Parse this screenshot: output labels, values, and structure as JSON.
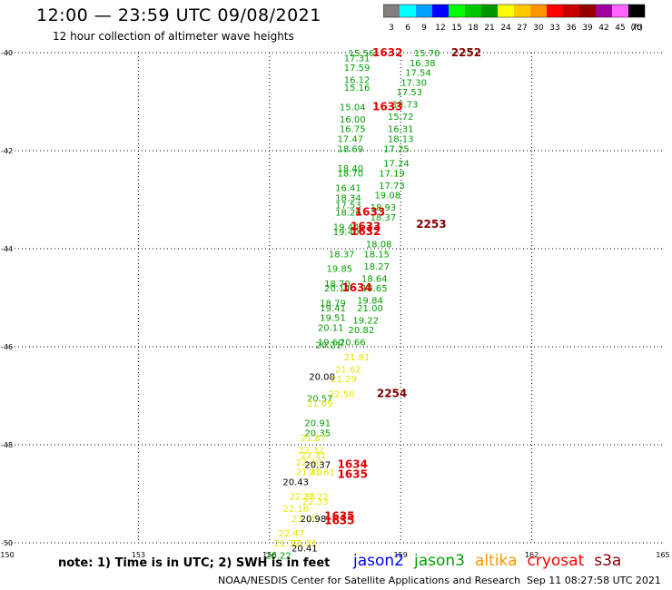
{
  "header": {
    "title": "12:00 — 23:59 UTC 09/08/2021",
    "subtitle": "12 hour collection of altimeter wave heights"
  },
  "legend": {
    "unit": "(ft)",
    "bins": [
      {
        "label": "3",
        "color": "#808080"
      },
      {
        "label": "6",
        "color": "#00ffff"
      },
      {
        "label": "9",
        "color": "#00a0ff"
      },
      {
        "label": "12",
        "color": "#0000ff"
      },
      {
        "label": "15",
        "color": "#00ff00"
      },
      {
        "label": "18",
        "color": "#00c800"
      },
      {
        "label": "21",
        "color": "#009600"
      },
      {
        "label": "24",
        "color": "#ffff00"
      },
      {
        "label": "27",
        "color": "#ffc800"
      },
      {
        "label": "30",
        "color": "#ff9600"
      },
      {
        "label": "33",
        "color": "#ff0000"
      },
      {
        "label": "36",
        "color": "#c80000"
      },
      {
        "label": "39",
        "color": "#960000"
      },
      {
        "label": "42",
        "color": "#a000a0"
      },
      {
        "label": "45",
        "color": "#ff64ff"
      },
      {
        "label": "70",
        "color": "#000000"
      }
    ]
  },
  "notes": "note:  1) Time is in UTC;  2) SWH is in feet",
  "satellites": [
    {
      "name": "jason2",
      "color": "#0000ff"
    },
    {
      "name": "jason3",
      "color": "#00a000"
    },
    {
      "name": "altika",
      "color": "#ff9600"
    },
    {
      "name": "cryosat",
      "color": "#ff0000"
    },
    {
      "name": "s3a",
      "color": "#800000"
    }
  ],
  "footer": {
    "credit": "NOAA/NESDIS Center for Satellite Applications and Research",
    "timestamp": "Sep 11 08:27:58 UTC 2021"
  },
  "chart_data": {
    "type": "scatter",
    "xlim": [
      150,
      165
    ],
    "ylim": [
      -50,
      -40
    ],
    "x_ticks": [
      "150",
      "153",
      "156",
      "159",
      "162",
      "165"
    ],
    "y_ticks": [
      "-40",
      "-42",
      "-44",
      "-46",
      "-48",
      "-50"
    ],
    "grid": true,
    "band_colors": {
      "green": "#00a000",
      "yellow": "#e8e800",
      "black": "#000000"
    },
    "swh_points": [
      {
        "x": 158.1,
        "y": -40.0,
        "v": "15.56",
        "c": "green"
      },
      {
        "x": 159.6,
        "y": -40.0,
        "v": "15.70",
        "c": "green"
      },
      {
        "x": 158.0,
        "y": -40.1,
        "v": "17.31",
        "c": "green"
      },
      {
        "x": 159.5,
        "y": -40.2,
        "v": "16.38",
        "c": "green"
      },
      {
        "x": 158.0,
        "y": -40.3,
        "v": "17.59",
        "c": "green"
      },
      {
        "x": 159.4,
        "y": -40.4,
        "v": "17.54",
        "c": "green"
      },
      {
        "x": 158.0,
        "y": -40.55,
        "v": "16.12",
        "c": "green"
      },
      {
        "x": 159.3,
        "y": -40.6,
        "v": "17.30",
        "c": "green"
      },
      {
        "x": 158.0,
        "y": -40.7,
        "v": "15.16",
        "c": "green"
      },
      {
        "x": 159.2,
        "y": -40.8,
        "v": "17.53",
        "c": "green"
      },
      {
        "x": 159.1,
        "y": -41.05,
        "v": "18.73",
        "c": "green"
      },
      {
        "x": 157.9,
        "y": -41.1,
        "v": "15.04",
        "c": "green"
      },
      {
        "x": 159.0,
        "y": -41.3,
        "v": "15.72",
        "c": "green"
      },
      {
        "x": 157.9,
        "y": -41.35,
        "v": "16.00",
        "c": "green"
      },
      {
        "x": 157.9,
        "y": -41.55,
        "v": "16.75",
        "c": "green"
      },
      {
        "x": 159.0,
        "y": -41.55,
        "v": "16.31",
        "c": "green"
      },
      {
        "x": 157.85,
        "y": -41.75,
        "v": "17.47",
        "c": "green"
      },
      {
        "x": 159.0,
        "y": -41.75,
        "v": "18.13",
        "c": "green"
      },
      {
        "x": 157.85,
        "y": -41.95,
        "v": "18.69",
        "c": "green"
      },
      {
        "x": 158.9,
        "y": -41.95,
        "v": "17.25",
        "c": "green"
      },
      {
        "x": 158.9,
        "y": -42.25,
        "v": "17.24",
        "c": "green"
      },
      {
        "x": 157.85,
        "y": -42.35,
        "v": "18.40",
        "c": "green"
      },
      {
        "x": 157.85,
        "y": -42.45,
        "v": "18.70",
        "c": "green"
      },
      {
        "x": 158.8,
        "y": -42.45,
        "v": "17.19",
        "c": "green"
      },
      {
        "x": 158.8,
        "y": -42.7,
        "v": "17.73",
        "c": "green"
      },
      {
        "x": 157.8,
        "y": -42.75,
        "v": "16.41",
        "c": "green"
      },
      {
        "x": 158.7,
        "y": -42.9,
        "v": "19.08",
        "c": "green"
      },
      {
        "x": 157.8,
        "y": -42.95,
        "v": "18.34",
        "c": "green"
      },
      {
        "x": 157.8,
        "y": -43.1,
        "v": "17.53",
        "c": "green"
      },
      {
        "x": 158.6,
        "y": -43.15,
        "v": "18.93",
        "c": "green"
      },
      {
        "x": 157.8,
        "y": -43.25,
        "v": "18.26",
        "c": "green"
      },
      {
        "x": 158.6,
        "y": -43.35,
        "v": "18.37",
        "c": "green"
      },
      {
        "x": 157.75,
        "y": -43.55,
        "v": "19.44",
        "c": "green"
      },
      {
        "x": 157.75,
        "y": -43.65,
        "v": "19.40",
        "c": "green"
      },
      {
        "x": 158.5,
        "y": -43.9,
        "v": "18.08",
        "c": "green"
      },
      {
        "x": 157.65,
        "y": -44.1,
        "v": "18.37",
        "c": "green"
      },
      {
        "x": 158.45,
        "y": -44.1,
        "v": "18.15",
        "c": "green"
      },
      {
        "x": 158.45,
        "y": -44.35,
        "v": "18.27",
        "c": "green"
      },
      {
        "x": 157.6,
        "y": -44.4,
        "v": "19.85",
        "c": "green"
      },
      {
        "x": 158.4,
        "y": -44.6,
        "v": "18.64",
        "c": "green"
      },
      {
        "x": 157.55,
        "y": -44.7,
        "v": "18.70",
        "c": "green"
      },
      {
        "x": 157.55,
        "y": -44.8,
        "v": "20.14",
        "c": "green"
      },
      {
        "x": 158.4,
        "y": -44.8,
        "v": "18.65",
        "c": "green"
      },
      {
        "x": 158.3,
        "y": -45.05,
        "v": "19.84",
        "c": "green"
      },
      {
        "x": 157.45,
        "y": -45.1,
        "v": "18.79",
        "c": "green"
      },
      {
        "x": 157.45,
        "y": -45.2,
        "v": "19.41",
        "c": "green"
      },
      {
        "x": 158.3,
        "y": -45.2,
        "v": "21.00",
        "c": "green"
      },
      {
        "x": 157.45,
        "y": -45.4,
        "v": "19.51",
        "c": "green"
      },
      {
        "x": 158.2,
        "y": -45.45,
        "v": "19.22",
        "c": "green"
      },
      {
        "x": 157.4,
        "y": -45.6,
        "v": "20.11",
        "c": "green"
      },
      {
        "x": 158.1,
        "y": -45.65,
        "v": "20.82",
        "c": "green"
      },
      {
        "x": 157.4,
        "y": -45.9,
        "v": "19.60",
        "c": "green"
      },
      {
        "x": 157.9,
        "y": -45.9,
        "v": "20.66",
        "c": "green"
      },
      {
        "x": 157.35,
        "y": -45.95,
        "v": "20.21",
        "c": "green"
      },
      {
        "x": 158.0,
        "y": -46.2,
        "v": "21.81",
        "c": "yellow"
      },
      {
        "x": 157.8,
        "y": -46.45,
        "v": "21.62",
        "c": "yellow"
      },
      {
        "x": 157.2,
        "y": -46.6,
        "v": "20.08",
        "c": "black"
      },
      {
        "x": 157.7,
        "y": -46.65,
        "v": "21.29",
        "c": "yellow"
      },
      {
        "x": 157.65,
        "y": -46.95,
        "v": "22.50",
        "c": "yellow"
      },
      {
        "x": 157.15,
        "y": -47.05,
        "v": "20.57",
        "c": "green"
      },
      {
        "x": 157.15,
        "y": -47.15,
        "v": "21.09",
        "c": "yellow"
      },
      {
        "x": 157.1,
        "y": -47.55,
        "v": "20.91",
        "c": "green"
      },
      {
        "x": 157.1,
        "y": -47.75,
        "v": "20.35",
        "c": "green"
      },
      {
        "x": 157.0,
        "y": -47.85,
        "v": "21.87",
        "c": "yellow"
      },
      {
        "x": 156.95,
        "y": -48.1,
        "v": "22.32",
        "c": "yellow"
      },
      {
        "x": 157.0,
        "y": -48.2,
        "v": "22.31",
        "c": "yellow"
      },
      {
        "x": 156.9,
        "y": -48.35,
        "v": "22.90",
        "c": "yellow"
      },
      {
        "x": 157.1,
        "y": -48.4,
        "v": "20.37",
        "c": "black"
      },
      {
        "x": 156.9,
        "y": -48.55,
        "v": "21.40",
        "c": "yellow"
      },
      {
        "x": 157.2,
        "y": -48.55,
        "v": "21.61",
        "c": "yellow"
      },
      {
        "x": 156.6,
        "y": -48.75,
        "v": "20.43",
        "c": "black"
      },
      {
        "x": 156.75,
        "y": -49.05,
        "v": "22.35",
        "c": "yellow"
      },
      {
        "x": 157.05,
        "y": -49.05,
        "v": "22.22",
        "c": "yellow"
      },
      {
        "x": 157.05,
        "y": -49.15,
        "v": "22.33",
        "c": "yellow"
      },
      {
        "x": 156.6,
        "y": -49.3,
        "v": "22.16",
        "c": "yellow"
      },
      {
        "x": 156.8,
        "y": -49.5,
        "v": "23.05",
        "c": "yellow"
      },
      {
        "x": 157.0,
        "y": -49.5,
        "v": "20.98",
        "c": "black"
      },
      {
        "x": 156.5,
        "y": -49.8,
        "v": "22.47",
        "c": "yellow"
      },
      {
        "x": 156.4,
        "y": -50.0,
        "v": "21.37",
        "c": "yellow"
      },
      {
        "x": 156.8,
        "y": -50.0,
        "v": "21.81",
        "c": "yellow"
      },
      {
        "x": 156.8,
        "y": -50.1,
        "v": "20.41",
        "c": "black"
      },
      {
        "x": 156.2,
        "y": -50.25,
        "v": "20.22",
        "c": "green"
      }
    ],
    "time_labels": [
      {
        "x": 158.7,
        "y": -40.0,
        "v": "1632",
        "c": "#e00000"
      },
      {
        "x": 160.5,
        "y": -40.0,
        "v": "2252",
        "c": "#800000"
      },
      {
        "x": 158.7,
        "y": -41.1,
        "v": "1633",
        "c": "#e00000"
      },
      {
        "x": 158.3,
        "y": -43.25,
        "v": "1633",
        "c": "#e00000"
      },
      {
        "x": 158.2,
        "y": -43.55,
        "v": "1633",
        "c": "#e00000"
      },
      {
        "x": 158.2,
        "y": -43.65,
        "v": "1632",
        "c": "#e00000"
      },
      {
        "x": 159.7,
        "y": -43.5,
        "v": "2253",
        "c": "#800000"
      },
      {
        "x": 158.0,
        "y": -44.8,
        "v": "1634",
        "c": "#e00000"
      },
      {
        "x": 158.8,
        "y": -46.95,
        "v": "2254",
        "c": "#800000"
      },
      {
        "x": 157.9,
        "y": -48.4,
        "v": "1634",
        "c": "#e00000"
      },
      {
        "x": 157.9,
        "y": -48.6,
        "v": "1635",
        "c": "#e00000"
      },
      {
        "x": 157.6,
        "y": -49.45,
        "v": "1635",
        "c": "#e00000"
      },
      {
        "x": 157.6,
        "y": -49.55,
        "v": "1635",
        "c": "#e00000"
      }
    ]
  }
}
